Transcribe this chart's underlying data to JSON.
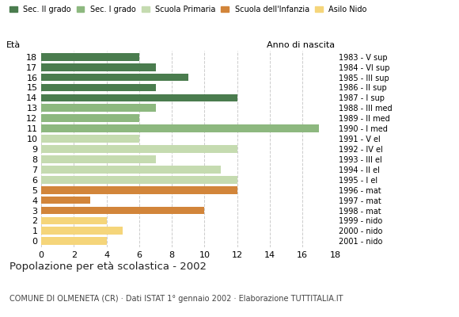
{
  "ages": [
    18,
    17,
    16,
    15,
    14,
    13,
    12,
    11,
    10,
    9,
    8,
    7,
    6,
    5,
    4,
    3,
    2,
    1,
    0
  ],
  "values": [
    6,
    7,
    9,
    7,
    12,
    7,
    6,
    17,
    6,
    12,
    7,
    11,
    12,
    12,
    3,
    10,
    4,
    5,
    4
  ],
  "categories": [
    "Sec. II grado",
    "Sec. I grado",
    "Scuola Primaria",
    "Scuola dell'Infanzia",
    "Asilo Nido"
  ],
  "bar_colors": {
    "Sec. II grado": "#4a7c4e",
    "Sec. I grado": "#8db87f",
    "Scuola Primaria": "#c5dbb0",
    "Scuola dell'Infanzia": "#d2853a",
    "Asilo Nido": "#f5d57a"
  },
  "age_category": {
    "18": "Sec. II grado",
    "17": "Sec. II grado",
    "16": "Sec. II grado",
    "15": "Sec. II grado",
    "14": "Sec. II grado",
    "13": "Sec. I grado",
    "12": "Sec. I grado",
    "11": "Sec. I grado",
    "10": "Scuola Primaria",
    "9": "Scuola Primaria",
    "8": "Scuola Primaria",
    "7": "Scuola Primaria",
    "6": "Scuola Primaria",
    "5": "Scuola dell'Infanzia",
    "4": "Scuola dell'Infanzia",
    "3": "Scuola dell'Infanzia",
    "2": "Asilo Nido",
    "1": "Asilo Nido",
    "0": "Asilo Nido"
  },
  "right_labels": {
    "18": "1983 - V sup",
    "17": "1984 - VI sup",
    "16": "1985 - III sup",
    "15": "1986 - II sup",
    "14": "1987 - I sup",
    "13": "1988 - III med",
    "12": "1989 - II med",
    "11": "1990 - I med",
    "10": "1991 - V el",
    "9": "1992 - IV el",
    "8": "1993 - III el",
    "7": "1994 - II el",
    "6": "1995 - I el",
    "5": "1996 - mat",
    "4": "1997 - mat",
    "3": "1998 - mat",
    "2": "1999 - nido",
    "1": "2000 - nido",
    "0": "2001 - nido"
  },
  "title": "Popolazione per età scolastica - 2002",
  "subtitle": "COMUNE DI OLMENETA (CR) · Dati ISTAT 1° gennaio 2002 · Elaborazione TUTTITALIA.IT",
  "ylabel_left": "Età",
  "ylabel_right": "Anno di nascita",
  "xlim": [
    0,
    18
  ],
  "xticks": [
    0,
    2,
    4,
    6,
    8,
    10,
    12,
    14,
    16,
    18
  ],
  "background_color": "#ffffff",
  "grid_color": "#cccccc"
}
